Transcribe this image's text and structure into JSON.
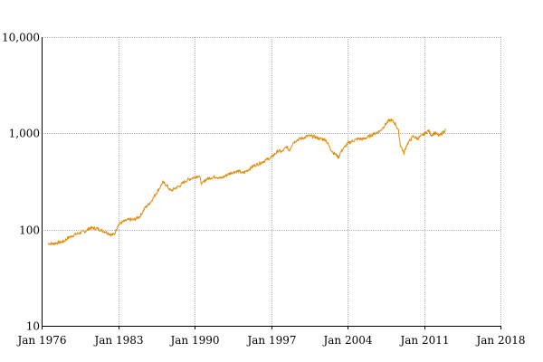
{
  "chart_data": {
    "type": "line",
    "title": "",
    "xlabel": "",
    "ylabel": "",
    "y_scale": "log",
    "ylim": [
      10,
      10000
    ],
    "xlim": [
      "1976-01",
      "2018-01"
    ],
    "grid": true,
    "legend": "none",
    "x_ticks": [
      "Jan 1976",
      "Jan 1983",
      "Jan 1990",
      "Jan 1997",
      "Jan 2004",
      "Jan 2011",
      "Jan 2018"
    ],
    "y_ticks": [
      "10",
      "100",
      "1,000",
      "10,000"
    ],
    "y_tick_values": [
      10,
      100,
      1000,
      10000
    ],
    "colors": {
      "series": "#e08c0a",
      "grid": "#b4b4b4",
      "axis": "#000000"
    },
    "series": [
      {
        "x": [
          "1976-08",
          "1977-01",
          "1977-06",
          "1978-01",
          "1978-06",
          "1979-01",
          "1979-06",
          "1980-01",
          "1980-06",
          "1981-01",
          "1981-06",
          "1982-01",
          "1982-06",
          "1982-09",
          "1983-01",
          "1983-06",
          "1984-01",
          "1984-06",
          "1985-01",
          "1985-06",
          "1986-01",
          "1986-06",
          "1986-09",
          "1987-02",
          "1987-06",
          "1987-11",
          "1988-04",
          "1988-09",
          "1989-01",
          "1989-06",
          "1990-01",
          "1990-06",
          "1990-09",
          "1991-01",
          "1991-06",
          "1992-01",
          "1992-06",
          "1993-01",
          "1993-06",
          "1994-01",
          "1994-06",
          "1995-01",
          "1995-06",
          "1996-01",
          "1996-06",
          "1997-01",
          "1997-06",
          "1997-09",
          "1998-01",
          "1998-06",
          "1998-09",
          "1999-01",
          "1999-06",
          "2000-01",
          "2000-06",
          "2001-01",
          "2001-06",
          "2002-01",
          "2002-06",
          "2002-10",
          "2003-01",
          "2003-03",
          "2003-06",
          "2004-01",
          "2004-06",
          "2005-01",
          "2005-06",
          "2006-01",
          "2006-06",
          "2007-01",
          "2007-06",
          "2007-10",
          "2008-01",
          "2008-06",
          "2008-09",
          "2008-11",
          "2009-03",
          "2009-06",
          "2010-01",
          "2010-06",
          "2011-01",
          "2011-06",
          "2011-09",
          "2012-01",
          "2012-06",
          "2013-01"
        ],
        "values": [
          72,
          71,
          73,
          75,
          82,
          88,
          92,
          96,
          104,
          103,
          99,
          93,
          88,
          90,
          112,
          120,
          127,
          126,
          137,
          165,
          195,
          232,
          255,
          310,
          290,
          252,
          270,
          285,
          310,
          330,
          350,
          365,
          295,
          330,
          345,
          355,
          340,
          372,
          392,
          405,
          385,
          425,
          460,
          490,
          520,
          560,
          620,
          660,
          640,
          730,
          660,
          800,
          860,
          900,
          940,
          920,
          880,
          860,
          700,
          620,
          595,
          560,
          650,
          780,
          830,
          880,
          870,
          930,
          990,
          1060,
          1220,
          1340,
          1380,
          1240,
          1050,
          760,
          620,
          760,
          930,
          880,
          980,
          1070,
          960,
          1010,
          940,
          1100
        ]
      }
    ]
  }
}
